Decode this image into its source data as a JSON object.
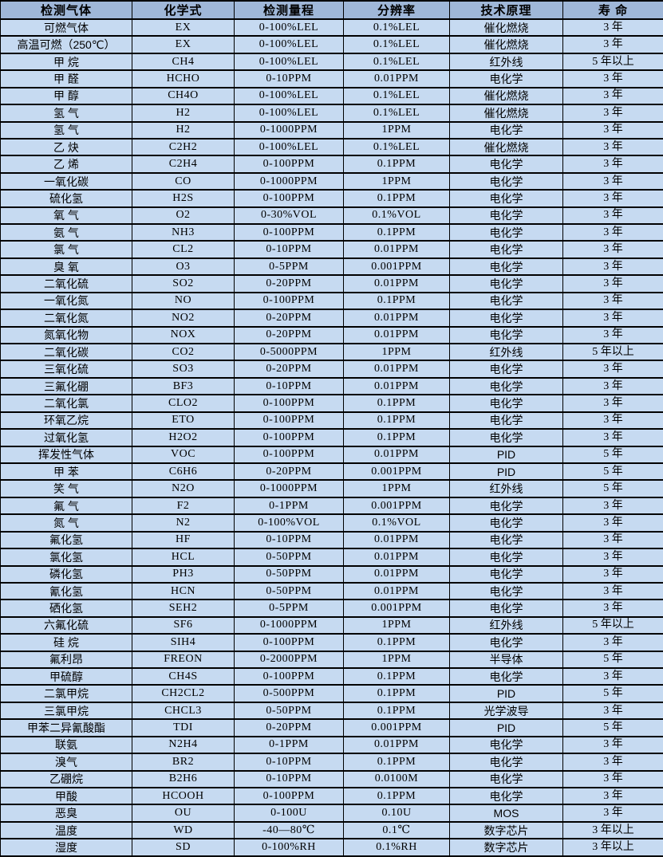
{
  "colors": {
    "header_bg": "#9FB7D8",
    "row_bg": "#C6DAF1",
    "border": "#000000",
    "text": "#000000"
  },
  "table": {
    "headers": [
      "检测气体",
      "化学式",
      "检测量程",
      "分辨率",
      "技术原理",
      "寿 命"
    ],
    "rows": [
      [
        "可燃气体",
        "EX",
        "0-100%LEL",
        "0.1%LEL",
        "催化燃烧",
        "3 年"
      ],
      [
        "高温可燃（250℃）",
        "EX",
        "0-100%LEL",
        "0.1%LEL",
        "催化燃烧",
        "3 年"
      ],
      [
        "甲 烷",
        "CH4",
        "0-100%LEL",
        "0.1%LEL",
        "红外线",
        "5 年以上"
      ],
      [
        "甲 醛",
        "HCHO",
        "0-10PPM",
        "0.01PPM",
        "电化学",
        "3 年"
      ],
      [
        "甲 醇",
        "CH4O",
        "0-100%LEL",
        "0.1%LEL",
        "催化燃烧",
        "3 年"
      ],
      [
        "氢 气",
        "H2",
        "0-100%LEL",
        "0.1%LEL",
        "催化燃烧",
        "3 年"
      ],
      [
        "氢 气",
        "H2",
        "0-1000PPM",
        "1PPM",
        "电化学",
        "3 年"
      ],
      [
        "乙 炔",
        "C2H2",
        "0-100%LEL",
        "0.1%LEL",
        "催化燃烧",
        "3 年"
      ],
      [
        "乙 烯",
        "C2H4",
        "0-100PPM",
        "0.1PPM",
        "电化学",
        "3 年"
      ],
      [
        "一氧化碳",
        "CO",
        "0-1000PPM",
        "1PPM",
        "电化学",
        "3 年"
      ],
      [
        "硫化氢",
        "H2S",
        "0-100PPM",
        "0.1PPM",
        "电化学",
        "3 年"
      ],
      [
        "氧 气",
        "O2",
        "0-30%VOL",
        "0.1%VOL",
        "电化学",
        "3 年"
      ],
      [
        "氨 气",
        "NH3",
        "0-100PPM",
        "0.1PPM",
        "电化学",
        "3 年"
      ],
      [
        "氯 气",
        "CL2",
        "0-10PPM",
        "0.01PPM",
        "电化学",
        "3 年"
      ],
      [
        "臭 氧",
        "O3",
        "0-5PPM",
        "0.001PPM",
        "电化学",
        "3 年"
      ],
      [
        "二氧化硫",
        "SO2",
        "0-20PPM",
        "0.01PPM",
        "电化学",
        "3 年"
      ],
      [
        "一氧化氮",
        "NO",
        "0-100PPM",
        "0.1PPM",
        "电化学",
        "3 年"
      ],
      [
        "二氧化氮",
        "NO2",
        "0-20PPM",
        "0.01PPM",
        "电化学",
        "3 年"
      ],
      [
        "氮氧化物",
        "NOX",
        "0-20PPM",
        "0.01PPM",
        "电化学",
        "3 年"
      ],
      [
        "二氧化碳",
        "CO2",
        "0-5000PPM",
        "1PPM",
        "红外线",
        "5 年以上"
      ],
      [
        "三氧化硫",
        "SO3",
        "0-20PPM",
        "0.01PPM",
        "电化学",
        "3 年"
      ],
      [
        "三氟化硼",
        "BF3",
        "0-10PPM",
        "0.01PPM",
        "电化学",
        "3 年"
      ],
      [
        "二氧化氯",
        "CLO2",
        "0-100PPM",
        "0.1PPM",
        "电化学",
        "3 年"
      ],
      [
        "环氧乙烷",
        "ETO",
        "0-100PPM",
        "0.1PPM",
        "电化学",
        "3 年"
      ],
      [
        "过氧化氢",
        "H2O2",
        "0-100PPM",
        "0.1PPM",
        "电化学",
        "3 年"
      ],
      [
        "挥发性气体",
        "VOC",
        "0-100PPM",
        "0.01PPM",
        "PID",
        "5 年"
      ],
      [
        "甲 苯",
        "C6H6",
        "0-20PPM",
        "0.001PPM",
        "PID",
        "5 年"
      ],
      [
        "笑 气",
        "N2O",
        "0-1000PPM",
        "1PPM",
        "红外线",
        "5 年"
      ],
      [
        "氟 气",
        "F2",
        "0-1PPM",
        "0.001PPM",
        "电化学",
        "3 年"
      ],
      [
        "氮 气",
        "N2",
        "0-100%VOL",
        "0.1%VOL",
        "电化学",
        "3 年"
      ],
      [
        "氟化氢",
        "HF",
        "0-10PPM",
        "0.01PPM",
        "电化学",
        "3 年"
      ],
      [
        "氯化氢",
        "HCL",
        "0-50PPM",
        "0.01PPM",
        "电化学",
        "3 年"
      ],
      [
        "磷化氢",
        "PH3",
        "0-50PPM",
        "0.01PPM",
        "电化学",
        "3 年"
      ],
      [
        "氰化氢",
        "HCN",
        "0-50PPM",
        "0.01PPM",
        "电化学",
        "3 年"
      ],
      [
        "硒化氢",
        "SEH2",
        "0-5PPM",
        "0.001PPM",
        "电化学",
        "3 年"
      ],
      [
        "六氟化硫",
        "SF6",
        "0-1000PPM",
        "1PPM",
        "红外线",
        "5 年以上"
      ],
      [
        "硅 烷",
        "SIH4",
        "0-100PPM",
        "0.1PPM",
        "电化学",
        "3 年"
      ],
      [
        "氟利昂",
        "FREON",
        "0-2000PPM",
        "1PPM",
        "半导体",
        "5 年"
      ],
      [
        "甲硫醇",
        "CH4S",
        "0-100PPM",
        "0.1PPM",
        "电化学",
        "3 年"
      ],
      [
        "二氯甲烷",
        "CH2CL2",
        "0-500PPM",
        "0.1PPM",
        "PID",
        "5 年"
      ],
      [
        "三氯甲烷",
        "CHCL3",
        "0-50PPM",
        "0.1PPM",
        "光学波导",
        "3 年"
      ],
      [
        "甲苯二异氰酸酯",
        "TDI",
        "0-20PPM",
        "0.001PPM",
        "PID",
        "5 年"
      ],
      [
        "联氨",
        "N2H4",
        "0-1PPM",
        "0.01PPM",
        "电化学",
        "3 年"
      ],
      [
        "溴气",
        "BR2",
        "0-10PPM",
        "0.1PPM",
        "电化学",
        "3 年"
      ],
      [
        "乙硼烷",
        "B2H6",
        "0-10PPM",
        "0.0100M",
        "电化学",
        "3 年"
      ],
      [
        "甲酸",
        "HCOOH",
        "0-100PPM",
        "0.1PPM",
        "电化学",
        "3 年"
      ],
      [
        "恶臭",
        "OU",
        "0-100U",
        "0.10U",
        "MOS",
        "3 年"
      ],
      [
        "温度",
        "WD",
        "-40—80℃",
        "0.1℃",
        "数字芯片",
        "3 年以上"
      ],
      [
        "湿度",
        "SD",
        "0-100%RH",
        "0.1%RH",
        "数字芯片",
        "3 年以上"
      ]
    ]
  }
}
